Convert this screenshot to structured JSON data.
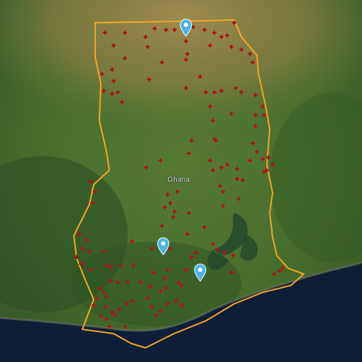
{
  "map": {
    "country_label": "Ghana",
    "colors": {
      "border": "#f5a623",
      "marker": "#b0141a",
      "pin": "#4db3e6",
      "sea": "#0f1d38",
      "land": "#3f6a2b"
    },
    "icons": {
      "marker": "red-cross-marker-icon",
      "pin": "location-pin-icon"
    }
  }
}
